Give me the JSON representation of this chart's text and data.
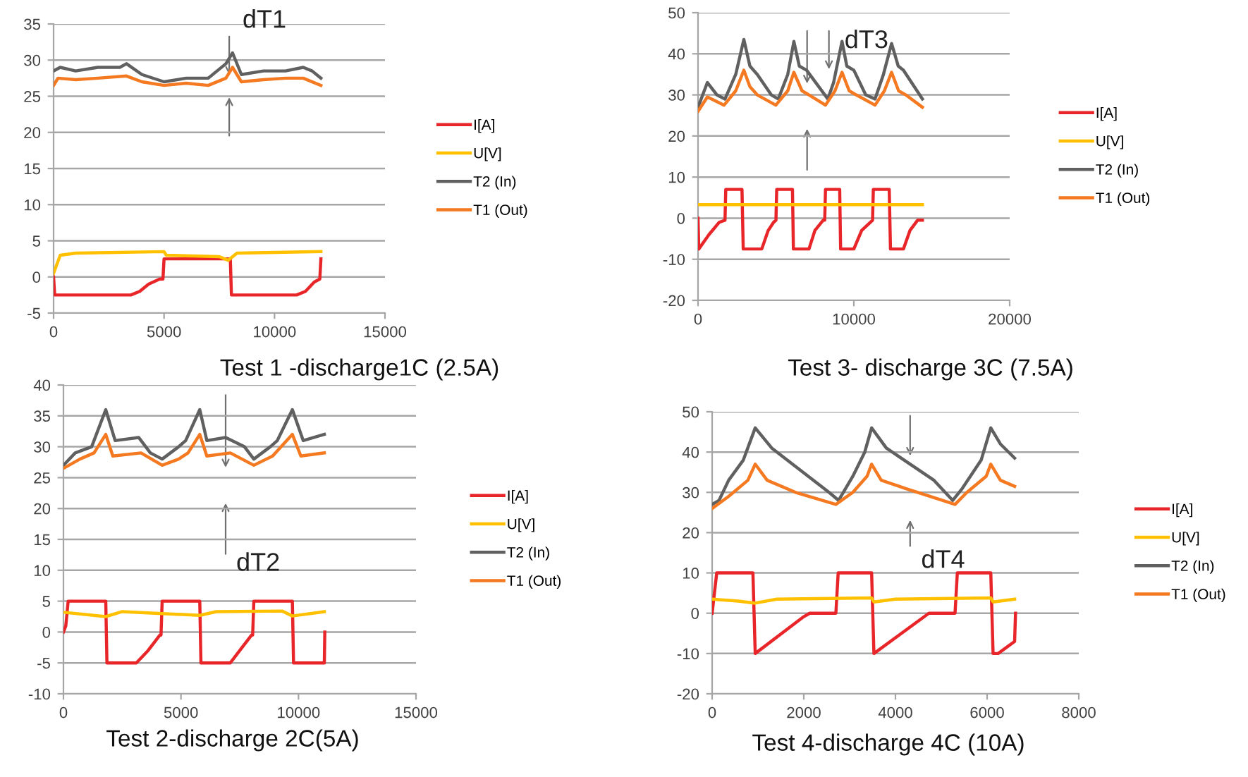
{
  "chart_data": [
    {
      "type": "line",
      "title": "Test 1 -discharge1C (2.5A)",
      "xlim": [
        0,
        15000
      ],
      "xticks": [
        0,
        5000,
        10000,
        15000
      ],
      "ylim": [
        -5,
        35
      ],
      "yticks": [
        -5,
        0,
        5,
        10,
        15,
        20,
        25,
        30,
        35
      ],
      "grid": "y",
      "legend": "right",
      "annotations": [
        "dT1"
      ],
      "series": [
        {
          "name": "I[A]",
          "color": "#e8262a",
          "x": [
            0,
            50,
            3500,
            3900,
            4300,
            4800,
            4950,
            5000,
            8000,
            8050,
            11000,
            11400,
            11800,
            12050,
            12100
          ],
          "values": [
            0,
            -2.5,
            -2.5,
            -2,
            -1,
            -0.3,
            -0.3,
            2.5,
            2.5,
            -2.5,
            -2.5,
            -2,
            -0.7,
            -0.3,
            2.5
          ]
        },
        {
          "name": "U[V]",
          "color": "#ffc000",
          "x": [
            0,
            300,
            1000,
            5000,
            5100,
            7500,
            7900,
            8300,
            12100
          ],
          "values": [
            0.5,
            3,
            3.3,
            3.5,
            3,
            2.8,
            2.3,
            3.3,
            3.5
          ]
        },
        {
          "name": "T2 (In)",
          "color": "#606060",
          "x": [
            0,
            300,
            1000,
            2000,
            3000,
            3300,
            4000,
            5000,
            6000,
            7000,
            7800,
            8100,
            8500,
            9500,
            10500,
            11300,
            11700,
            12100
          ],
          "values": [
            28.5,
            29,
            28.5,
            29,
            29,
            29.5,
            28,
            27,
            27.5,
            27.5,
            29.5,
            31,
            28,
            28.5,
            28.5,
            29,
            28.5,
            27.5
          ]
        },
        {
          "name": "T1 (Out)",
          "color": "#f47920",
          "x": [
            0,
            200,
            1000,
            2000,
            3300,
            4000,
            5000,
            6000,
            7000,
            7800,
            8100,
            8500,
            9500,
            10500,
            11300,
            12100
          ],
          "values": [
            26.5,
            27.5,
            27.3,
            27.5,
            27.8,
            27,
            26.5,
            26.8,
            26.5,
            27.5,
            29,
            27,
            27.3,
            27.5,
            27.5,
            26.5
          ]
        }
      ]
    },
    {
      "type": "line",
      "title": "Test 3- discharge 3C (7.5A)",
      "xlim": [
        0,
        20000
      ],
      "xticks": [
        0,
        10000,
        20000
      ],
      "ylim": [
        -20,
        50
      ],
      "yticks": [
        -20,
        -10,
        0,
        10,
        20,
        30,
        40,
        50
      ],
      "grid": "y",
      "legend": "right",
      "annotations": [
        "dT3"
      ],
      "series": [
        {
          "name": "I[A]",
          "color": "#e8262a",
          "x": [
            0,
            50,
            700,
            1360,
            1730,
            1780,
            2820,
            2900,
            4090,
            4500,
            4850,
            5000,
            5050,
            6060,
            6120,
            7120,
            7500,
            8030,
            8130,
            8180,
            9090,
            9150,
            10000,
            10500,
            11200,
            11250,
            12270,
            12350,
            13180,
            13600,
            14090,
            14400
          ],
          "values": [
            0,
            -7.5,
            -4,
            -1,
            -0.5,
            7,
            7,
            -7.5,
            -7.5,
            -3,
            -1,
            -0.5,
            7,
            7,
            -7.5,
            -7.5,
            -3,
            -0.5,
            -0.5,
            7,
            7,
            -7.5,
            -7.5,
            -3,
            -0.5,
            7,
            7,
            -7.5,
            -7.5,
            -3,
            -0.5,
            -0.5
          ]
        },
        {
          "name": "U[V]",
          "color": "#ffc000",
          "x": [
            0,
            14400
          ],
          "values": [
            3.3,
            3.3
          ]
        },
        {
          "name": "T2 (In)",
          "color": "#606060",
          "x": [
            0,
            600,
            1210,
            1730,
            2420,
            2940,
            3330,
            3800,
            4700,
            5150,
            5760,
            6150,
            6500,
            6970,
            8330,
            8700,
            9240,
            9550,
            10000,
            10760,
            11360,
            11900,
            12420,
            12850,
            13180,
            14400
          ],
          "values": [
            27,
            33,
            30,
            29,
            35,
            43.5,
            37,
            35,
            30,
            29,
            35,
            43,
            37,
            36,
            29,
            33,
            43,
            37,
            36,
            30,
            29,
            35,
            42.5,
            37,
            36,
            29
          ]
        },
        {
          "name": "T1 (Out)",
          "color": "#f47920",
          "x": [
            0,
            600,
            1670,
            2420,
            2940,
            3330,
            3800,
            4990,
            5760,
            6150,
            6670,
            7120,
            8180,
            8790,
            9240,
            9700,
            10150,
            11360,
            11960,
            12420,
            12870,
            13330,
            14400
          ],
          "values": [
            26,
            29.5,
            27.5,
            31,
            36,
            32,
            30,
            27.5,
            31,
            35.5,
            31,
            30,
            27.5,
            31,
            35.5,
            31,
            30,
            27.5,
            31,
            35.5,
            31,
            30,
            27
          ]
        }
      ]
    },
    {
      "type": "line",
      "title": "Test 2-discharge 2C(5A)",
      "xlim": [
        0,
        15000
      ],
      "xticks": [
        0,
        5000,
        10000,
        15000
      ],
      "ylim": [
        -10,
        40
      ],
      "yticks": [
        -10,
        -5,
        0,
        5,
        10,
        15,
        20,
        25,
        30,
        35,
        40
      ],
      "grid": "y",
      "legend": "right",
      "annotations": [
        "dT2"
      ],
      "series": [
        {
          "name": "I[A]",
          "color": "#e8262a",
          "x": [
            0,
            100,
            200,
            1800,
            1850,
            3100,
            3600,
            4100,
            4150,
            4200,
            5800,
            5850,
            7100,
            7500,
            8000,
            8050,
            8100,
            9740,
            9790,
            11100,
            11120
          ],
          "values": [
            0,
            1,
            5,
            5,
            -5,
            -5,
            -3,
            -0.5,
            -0.5,
            5,
            5,
            -5,
            -5,
            -3,
            -0.5,
            -0.5,
            5,
            5,
            -5,
            -5,
            0
          ]
        },
        {
          "name": "U[V]",
          "color": "#ffc000",
          "x": [
            0,
            1800,
            2500,
            5800,
            6500,
            9300,
            9740,
            11100
          ],
          "values": [
            3.2,
            2.5,
            3.3,
            2.7,
            3.3,
            3.4,
            2.6,
            3.3
          ]
        },
        {
          "name": "T2 (In)",
          "color": "#606060",
          "x": [
            0,
            500,
            1200,
            1800,
            2200,
            3200,
            3700,
            4200,
            4900,
            5200,
            5800,
            6100,
            6900,
            7700,
            8100,
            8800,
            9100,
            9740,
            10200,
            11100
          ],
          "values": [
            27,
            29,
            30,
            36,
            31,
            31.5,
            29,
            28,
            30,
            31,
            36,
            31,
            31.5,
            30,
            28,
            30,
            31,
            36,
            31,
            32
          ]
        },
        {
          "name": "T1 (Out)",
          "color": "#f47920",
          "x": [
            0,
            700,
            1300,
            1800,
            2100,
            3300,
            4200,
            4900,
            5300,
            5800,
            6100,
            7100,
            8100,
            8900,
            9740,
            10100,
            11100
          ],
          "values": [
            26.5,
            28,
            29,
            32,
            28.5,
            29,
            27,
            28,
            29,
            32,
            28.5,
            29,
            27,
            28.5,
            32,
            28.5,
            29
          ]
        }
      ]
    },
    {
      "type": "line",
      "title": "Test 4-discharge 4C (10A)",
      "xlim": [
        0,
        8000
      ],
      "xticks": [
        0,
        2000,
        4000,
        6000,
        8000
      ],
      "ylim": [
        -20,
        50
      ],
      "yticks": [
        -20,
        -10,
        0,
        10,
        20,
        30,
        40,
        50
      ],
      "grid": "y",
      "legend": "right",
      "annotations": [
        "dT4"
      ],
      "series": [
        {
          "name": "I[A]",
          "color": "#e8262a",
          "x": [
            0,
            100,
            890,
            940,
            1980,
            2130,
            2700,
            2750,
            3480,
            3530,
            4730,
            5300,
            5350,
            6080,
            6130,
            6240,
            6600,
            6620
          ],
          "values": [
            0,
            10,
            10,
            -10,
            -1,
            0,
            0,
            10,
            10,
            -10,
            0,
            0,
            10,
            10,
            -10,
            -10,
            -7,
            0
          ]
        },
        {
          "name": "U[V]",
          "color": "#ffc000",
          "x": [
            0,
            570,
            940,
            1410,
            3480,
            3530,
            4000,
            6080,
            6130,
            6600
          ],
          "values": [
            3.5,
            3,
            2.5,
            3.5,
            3.8,
            2.8,
            3.5,
            3.8,
            2.8,
            3.5
          ]
        },
        {
          "name": "T2 (In)",
          "color": "#606060",
          "x": [
            0,
            150,
            360,
            680,
            940,
            1300,
            2550,
            2760,
            3070,
            3330,
            3480,
            3800,
            4840,
            5250,
            5460,
            5870,
            6080,
            6290,
            6600
          ],
          "values": [
            27,
            28,
            33,
            38,
            46,
            41,
            30,
            28,
            34,
            40,
            46,
            41,
            33,
            28,
            31,
            38,
            46,
            42,
            38.5
          ]
        },
        {
          "name": "T1 (Out)",
          "color": "#f47920",
          "x": [
            0,
            360,
            780,
            940,
            1200,
            1820,
            2700,
            3070,
            3380,
            3480,
            3690,
            4210,
            5300,
            5560,
            5980,
            6080,
            6290,
            6600
          ],
          "values": [
            26,
            29,
            33,
            37,
            33,
            30,
            27,
            30,
            34,
            37,
            33,
            31,
            27,
            30,
            34,
            37,
            33,
            31.5
          ]
        }
      ]
    }
  ]
}
